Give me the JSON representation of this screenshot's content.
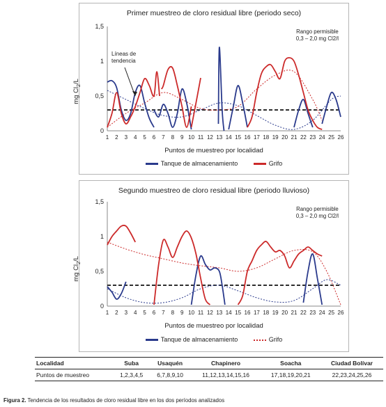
{
  "chart_data": [
    {
      "type": "line",
      "title": "Primer muestreo de cloro residual libre (periodo seco)",
      "xlabel": "Puntos de muestreo por localidad",
      "ylabel_main": "mg Cl",
      "ylabel_sub": "2",
      "ylabel_end": "/L",
      "xlim": [
        1,
        26
      ],
      "ylim": [
        0,
        1.5
      ],
      "x_ticks": [
        "1",
        "2",
        "3",
        "4",
        "5",
        "6",
        "7",
        "8",
        "9",
        "10",
        "11",
        "12",
        "13",
        "14",
        "15",
        "16",
        "17",
        "18",
        "19",
        "20",
        "21",
        "22",
        "23",
        "24",
        "25",
        "26"
      ],
      "y_ticks": [
        "0",
        "0,5",
        "1",
        "1,5"
      ],
      "range_note_1": "Rango permisible",
      "range_note_2": "0,3 – 2,0 mg Cl2/l",
      "threshold": 0.3,
      "annotation_1": "Líneas de",
      "annotation_2": "tendencia",
      "legend": [
        "Tanque de almacenamiento",
        "Grifo"
      ],
      "series": [
        {
          "name": "Tanque de almacenamiento",
          "color": "#2a3a8c",
          "segments": [
            [
              [
                1,
                0.7
              ],
              [
                1.5,
                0.72
              ],
              [
                2,
                0.62
              ],
              [
                2.5,
                0.3
              ],
              [
                3,
                0.15
              ],
              [
                3.5,
                0.25
              ],
              [
                4,
                0.55
              ],
              [
                4.5,
                0.65
              ],
              [
                5,
                0.4
              ],
              [
                5.5,
                0.18
              ],
              [
                6,
                0.05
              ]
            ],
            [
              [
                6,
                0.3
              ],
              [
                6.5,
                0.2
              ],
              [
                7,
                0.38
              ],
              [
                7.5,
                0.25
              ],
              [
                8,
                0.05
              ],
              [
                8.5,
                0.25
              ],
              [
                9,
                0.6
              ],
              [
                9.5,
                0.4
              ],
              [
                10,
                0.02
              ]
            ],
            [
              [
                12.9,
                0.1
              ],
              [
                13,
                1.2
              ],
              [
                13.3,
                0.3
              ],
              [
                13.5,
                0
              ]
            ],
            [
              [
                14,
                0.02
              ],
              [
                14.5,
                0.35
              ],
              [
                15,
                0.65
              ],
              [
                15.5,
                0.4
              ],
              [
                16,
                0.05
              ]
            ],
            [
              [
                21,
                0.05
              ],
              [
                21.5,
                0.3
              ],
              [
                22,
                0.45
              ],
              [
                22.5,
                0.25
              ],
              [
                23,
                0.05
              ]
            ],
            [
              [
                24,
                0.1
              ],
              [
                24.5,
                0.35
              ],
              [
                25,
                0.55
              ],
              [
                25.5,
                0.45
              ],
              [
                26,
                0.2
              ]
            ]
          ]
        },
        {
          "name": "Grifo",
          "color": "#cc2a2a",
          "segments": [
            [
              [
                1,
                0.05
              ],
              [
                1.5,
                0.25
              ],
              [
                2,
                0.55
              ],
              [
                2.5,
                0.25
              ],
              [
                3,
                0.1
              ],
              [
                3.5,
                0.2
              ],
              [
                4,
                0.35
              ],
              [
                4.5,
                0.55
              ],
              [
                5,
                0.75
              ],
              [
                5.5,
                0.65
              ],
              [
                6,
                0.5
              ],
              [
                6.3,
                0.85
              ],
              [
                6.6,
                0.5
              ]
            ],
            [
              [
                6.8,
                0.6
              ],
              [
                7,
                0.65
              ],
              [
                7.5,
                0.88
              ],
              [
                8,
                0.9
              ],
              [
                8.5,
                0.65
              ],
              [
                9,
                0.35
              ],
              [
                9.5,
                0.05
              ],
              [
                10,
                0.35
              ]
            ],
            [
              [
                10,
                0.05
              ],
              [
                10.5,
                0.4
              ],
              [
                11,
                0.76
              ]
            ],
            [
              [
                16,
                0.05
              ],
              [
                16.5,
                0.2
              ],
              [
                17,
                0.55
              ],
              [
                17.5,
                0.82
              ],
              [
                18,
                0.92
              ],
              [
                18.5,
                0.95
              ],
              [
                19,
                0.85
              ],
              [
                19.5,
                0.75
              ],
              [
                20,
                1.0
              ],
              [
                20.5,
                1.05
              ],
              [
                21,
                1.0
              ],
              [
                21.5,
                0.8
              ],
              [
                22,
                0.55
              ],
              [
                22.5,
                0.3
              ],
              [
                23,
                0.15
              ],
              [
                23.5,
                0.05
              ],
              [
                24,
                0.02
              ]
            ]
          ]
        }
      ],
      "trend_series": [
        {
          "name": "Tanque de almacenamiento",
          "color": "#2a3a8c",
          "points": [
            [
              1,
              0.58
            ],
            [
              3,
              0.45
            ],
            [
              5,
              0.32
            ],
            [
              7,
              0.22
            ],
            [
              9,
              0.2
            ],
            [
              11,
              0.3
            ],
            [
              13,
              0.4
            ],
            [
              15,
              0.36
            ],
            [
              17,
              0.22
            ],
            [
              19,
              0.08
            ],
            [
              21,
              0.02
            ],
            [
              23,
              0.15
            ],
            [
              25,
              0.45
            ],
            [
              26,
              0.5
            ]
          ]
        },
        {
          "name": "Grifo",
          "color": "#cc2a2a",
          "points": [
            [
              1,
              0.05
            ],
            [
              3,
              0.25
            ],
            [
              5,
              0.4
            ],
            [
              7,
              0.55
            ],
            [
              9,
              0.45
            ],
            [
              11,
              0.32
            ],
            [
              13,
              0.3
            ],
            [
              15,
              0.35
            ],
            [
              17,
              0.6
            ],
            [
              19,
              0.8
            ],
            [
              21,
              0.85
            ],
            [
              23,
              0.45
            ],
            [
              24,
              0.15
            ]
          ]
        }
      ]
    },
    {
      "type": "line",
      "title": "Segundo muestreo de cloro residual libre (periodo lluvioso)",
      "xlabel": "Puntos de muestreo por localidad",
      "ylabel_main": "mg Cl",
      "ylabel_sub": "2",
      "ylabel_end": "/L",
      "xlim": [
        1,
        26
      ],
      "ylim": [
        0,
        1.5
      ],
      "x_ticks": [
        "1",
        "2",
        "3",
        "4",
        "5",
        "6",
        "7",
        "8",
        "9",
        "10",
        "11",
        "12",
        "13",
        "14",
        "15",
        "16",
        "17",
        "18",
        "19",
        "20",
        "21",
        "22",
        "23",
        "24",
        "25",
        "26"
      ],
      "y_ticks": [
        "0",
        "0,5",
        "1",
        "1,5"
      ],
      "range_note_1": "Rango permisible",
      "range_note_2": "0,3 – 2,0 mg Cl2/l",
      "threshold": 0.3,
      "legend": [
        "Tanque de almacenamiento",
        "Grifo"
      ],
      "series": [
        {
          "name": "Tanque de almacenamiento",
          "color": "#2a3a8c",
          "segments": [
            [
              [
                1,
                0.28
              ],
              [
                1.5,
                0.2
              ],
              [
                2,
                0.1
              ],
              [
                2.5,
                0.18
              ],
              [
                3,
                0.35
              ]
            ],
            [
              [
                10,
                0.02
              ],
              [
                10.5,
                0.45
              ],
              [
                11,
                0.72
              ],
              [
                11.5,
                0.6
              ],
              [
                12,
                0.52
              ],
              [
                12.5,
                0.55
              ],
              [
                13,
                0.5
              ],
              [
                13.3,
                0.3
              ],
              [
                13.6,
                0.02
              ]
            ],
            [
              [
                22,
                0.05
              ],
              [
                22.5,
                0.5
              ],
              [
                23,
                0.75
              ],
              [
                23.5,
                0.4
              ],
              [
                24,
                0.02
              ]
            ]
          ]
        },
        {
          "name": "Grifo",
          "color": "#cc2a2a",
          "segments": [
            [
              [
                1,
                0.88
              ],
              [
                1.5,
                1.0
              ],
              [
                2,
                1.08
              ],
              [
                2.5,
                1.15
              ],
              [
                3,
                1.15
              ],
              [
                3.5,
                1.05
              ],
              [
                4,
                0.92
              ]
            ],
            [
              [
                6,
                0.02
              ],
              [
                6.5,
                0.6
              ],
              [
                7,
                0.95
              ],
              [
                7.5,
                0.85
              ],
              [
                8,
                0.7
              ],
              [
                8.5,
                0.85
              ],
              [
                9,
                1.0
              ],
              [
                9.5,
                1.08
              ],
              [
                10,
                0.98
              ],
              [
                10.5,
                0.75
              ],
              [
                11,
                0.4
              ],
              [
                11.5,
                0.1
              ],
              [
                12,
                0.02
              ]
            ],
            [
              [
                15,
                0.02
              ],
              [
                15.5,
                0.15
              ],
              [
                16,
                0.5
              ],
              [
                16.5,
                0.65
              ],
              [
                17,
                0.8
              ],
              [
                17.5,
                0.88
              ],
              [
                18,
                0.93
              ],
              [
                18.5,
                0.85
              ],
              [
                19,
                0.78
              ],
              [
                19.5,
                0.8
              ],
              [
                20,
                0.72
              ],
              [
                20.5,
                0.55
              ],
              [
                21,
                0.65
              ],
              [
                21.5,
                0.75
              ],
              [
                22,
                0.8
              ],
              [
                22.5,
                0.85
              ],
              [
                23,
                0.8
              ],
              [
                23.5,
                0.75
              ],
              [
                24,
                0.72
              ]
            ]
          ]
        }
      ],
      "trend_series": [
        {
          "name": "Tanque de almacenamiento",
          "color": "#2a3a8c",
          "points": [
            [
              1,
              0.25
            ],
            [
              3,
              0.12
            ],
            [
              5,
              0.05
            ],
            [
              7,
              0.05
            ],
            [
              9,
              0.12
            ],
            [
              11,
              0.25
            ],
            [
              13,
              0.3
            ],
            [
              15,
              0.22
            ],
            [
              17,
              0.12
            ],
            [
              19,
              0.06
            ],
            [
              21,
              0.08
            ],
            [
              23,
              0.25
            ],
            [
              24.5,
              0.38
            ],
            [
              26,
              0.3
            ]
          ]
        },
        {
          "name": "Grifo",
          "color": "#cc2a2a",
          "points": [
            [
              1,
              0.92
            ],
            [
              3,
              0.82
            ],
            [
              5,
              0.74
            ],
            [
              7,
              0.68
            ],
            [
              9,
              0.62
            ],
            [
              11,
              0.58
            ],
            [
              13,
              0.55
            ],
            [
              15,
              0.5
            ],
            [
              17,
              0.55
            ],
            [
              19,
              0.68
            ],
            [
              21,
              0.8
            ],
            [
              23,
              0.78
            ],
            [
              24.5,
              0.5
            ],
            [
              26,
              0.02
            ]
          ]
        }
      ]
    }
  ],
  "table": {
    "headers": [
      "Localidad",
      "Suba",
      "Usaquén",
      "Chapinero",
      "Soacha",
      "Ciudad Bolívar"
    ],
    "row": [
      "Puntos de muestreo",
      "1,2,3,4,5",
      "6,7,8,9,10",
      "11,12,13,14,15,16",
      "17,18,19,20,21",
      "22,23,24,25,26"
    ]
  },
  "caption": {
    "label": "Figura 2.",
    "text": "Tendencia de los resultados de cloro residual libre en los dos períodos analizados"
  },
  "colors": {
    "tank": "#2a3a8c",
    "tap": "#cc2a2a",
    "threshold": "#111111"
  }
}
